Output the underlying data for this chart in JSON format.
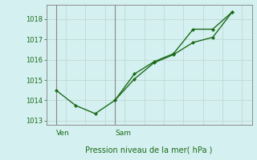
{
  "xlabel": "Pression niveau de la mer( hPa )",
  "bg_color": "#d5f0f0",
  "line_color": "#1a6b1a",
  "grid_color": "#c0d8d8",
  "axis_color": "#808080",
  "text_color": "#1a6b1a",
  "label_color": "#1a6b1a",
  "ylim": [
    1012.8,
    1018.7
  ],
  "yticks": [
    1013,
    1014,
    1015,
    1016,
    1017,
    1018
  ],
  "xlim": [
    0,
    10.5
  ],
  "line1_x": [
    0.5,
    1.5,
    2.5,
    3.5,
    4.5,
    5.5,
    6.5,
    7.5,
    8.5,
    9.5
  ],
  "line1_y": [
    1014.5,
    1013.75,
    1013.35,
    1014.0,
    1015.3,
    1015.9,
    1016.3,
    1017.5,
    1017.5,
    1018.35
  ],
  "line2_x": [
    3.5,
    4.5,
    5.5,
    6.5,
    7.5,
    8.5,
    9.5
  ],
  "line2_y": [
    1014.0,
    1015.05,
    1015.85,
    1016.25,
    1016.85,
    1017.1,
    1018.35
  ],
  "ven_x": 0.5,
  "sam_x": 3.5,
  "ven_label": "Ven",
  "sam_label": "Sam",
  "vline_color": "#888888"
}
